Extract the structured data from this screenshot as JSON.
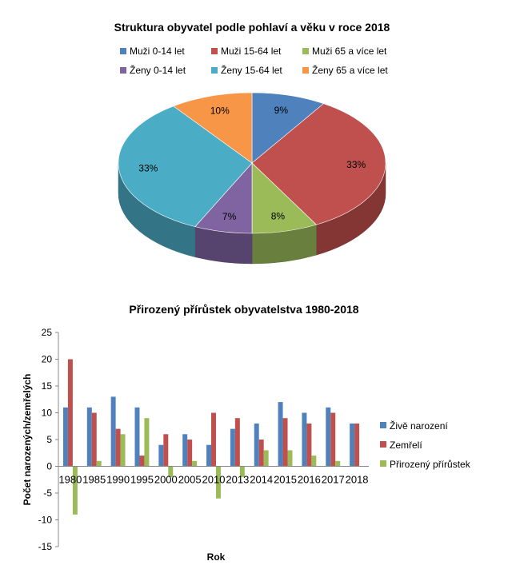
{
  "chart_data": [
    {
      "type": "pie",
      "title": "Struktura obyvatel podle pohlaví a věku v roce 2018",
      "legend": [
        "Muži 0-14 let",
        "Muži 15-64 let",
        "Muži 65 a více let",
        "Ženy 0-14 let",
        "Ženy 15-64 let",
        "Ženy 65 a více let"
      ],
      "legend_position": "top",
      "values": [
        9,
        33,
        8,
        7,
        33,
        10
      ],
      "labels": [
        "9%",
        "33%",
        "8%",
        "7%",
        "33%",
        "10%"
      ],
      "colors": [
        "#4F81BD",
        "#C0504D",
        "#9BBB59",
        "#8064A2",
        "#4BACC6",
        "#F79646"
      ]
    },
    {
      "type": "bar",
      "title": "Přirozený přírůstek obyvatelstva 1980-2018",
      "xlabel": "Rok",
      "ylabel": "Počet narozených/zemřelých",
      "ylim": [
        -15,
        25
      ],
      "yticks": [
        -15,
        -10,
        -5,
        0,
        5,
        10,
        15,
        20,
        25
      ],
      "categories": [
        "1980",
        "1985",
        "1990",
        "1995",
        "2000",
        "2005",
        "2010",
        "2013",
        "2014",
        "2015",
        "2016",
        "2017",
        "2018"
      ],
      "series": [
        {
          "name": "Živě narození",
          "color": "#4F81BD",
          "values": [
            11,
            11,
            13,
            11,
            4,
            6,
            4,
            7,
            8,
            12,
            10,
            11,
            8
          ]
        },
        {
          "name": "Zemřelí",
          "color": "#C0504D",
          "values": [
            20,
            10,
            7,
            2,
            6,
            5,
            10,
            9,
            5,
            9,
            8,
            10,
            8
          ]
        },
        {
          "name": "Přirozený přírůstek",
          "color": "#9BBB59",
          "values": [
            -9,
            1,
            6,
            9,
            -2,
            1,
            -6,
            -2,
            3,
            3,
            2,
            1,
            0
          ]
        }
      ],
      "legend_position": "right"
    }
  ]
}
